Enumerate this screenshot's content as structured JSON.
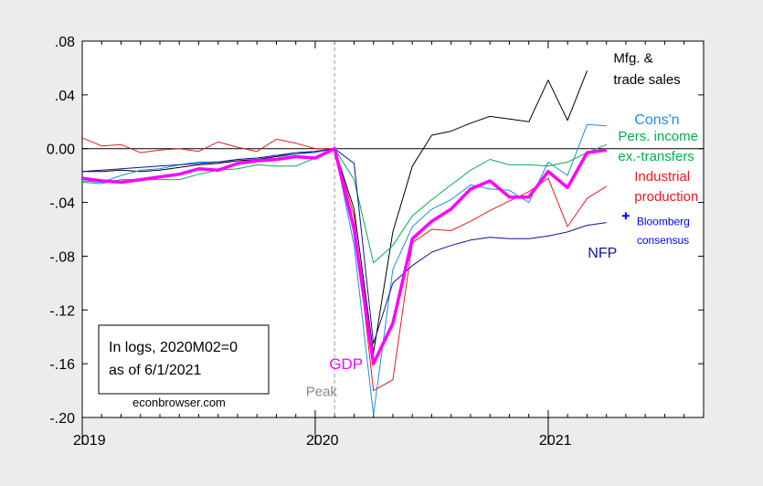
{
  "chart_data": {
    "type": "line",
    "title": "",
    "xlabel": "",
    "ylabel": "",
    "xlim": [
      2019.0,
      2021.667
    ],
    "ylim": [
      -0.2,
      0.08
    ],
    "x_ticks": [
      {
        "value": 2019,
        "label": "2019"
      },
      {
        "value": 2020,
        "label": "2020"
      },
      {
        "value": 2021,
        "label": "2021"
      }
    ],
    "y_ticks": [
      {
        "value": 0.08,
        "label": ".08"
      },
      {
        "value": 0.04,
        "label": ".04"
      },
      {
        "value": 0.0,
        "label": "0.00"
      },
      {
        "value": -0.04,
        "label": "-.04"
      },
      {
        "value": -0.08,
        "label": "-.08"
      },
      {
        "value": -0.12,
        "label": "-.12"
      },
      {
        "value": -0.16,
        "label": "-.16"
      },
      {
        "value": -0.2,
        "label": "-.20"
      }
    ],
    "grid": false,
    "zero_line": 0.0,
    "reference_line": {
      "x": 2020.083,
      "label": "Peak",
      "color": "#999999"
    },
    "series": [
      {
        "name": "Mfg. & trade sales",
        "color": "#000000",
        "width": 1,
        "x": [
          2019.0,
          2019.083,
          2019.167,
          2019.25,
          2019.333,
          2019.417,
          2019.5,
          2019.583,
          2019.667,
          2019.75,
          2019.833,
          2019.917,
          2020.0,
          2020.083,
          2020.167,
          2020.25,
          2020.333,
          2020.417,
          2020.5,
          2020.583,
          2020.667,
          2020.75,
          2020.833,
          2020.917,
          2021.0,
          2021.083,
          2021.167
        ],
        "values": [
          -0.017,
          -0.017,
          -0.016,
          -0.017,
          -0.016,
          -0.014,
          -0.012,
          -0.011,
          -0.009,
          -0.008,
          -0.006,
          -0.004,
          -0.002,
          0.0,
          -0.045,
          -0.152,
          -0.062,
          -0.013,
          0.01,
          0.013,
          0.019,
          0.024,
          0.022,
          0.02,
          0.051,
          0.021,
          0.058
        ]
      },
      {
        "name": "Cons'n",
        "color": "#1a8fe0",
        "width": 1,
        "x": [
          2019.0,
          2019.083,
          2019.167,
          2019.25,
          2019.333,
          2019.417,
          2019.5,
          2019.583,
          2019.667,
          2019.75,
          2019.833,
          2019.917,
          2020.0,
          2020.083,
          2020.167,
          2020.25,
          2020.333,
          2020.417,
          2020.5,
          2020.583,
          2020.667,
          2020.75,
          2020.833,
          2020.917,
          2021.0,
          2021.083,
          2021.167,
          2021.25
        ],
        "values": [
          -0.024,
          -0.025,
          -0.02,
          -0.016,
          -0.015,
          -0.012,
          -0.01,
          -0.01,
          -0.008,
          -0.007,
          -0.005,
          -0.004,
          -0.003,
          0.0,
          -0.072,
          -0.198,
          -0.09,
          -0.058,
          -0.045,
          -0.038,
          -0.027,
          -0.03,
          -0.031,
          -0.04,
          -0.01,
          -0.02,
          0.018,
          0.017
        ]
      },
      {
        "name": "Pers. income ex.-transfers",
        "color": "#00b050",
        "width": 1,
        "x": [
          2019.0,
          2019.083,
          2019.167,
          2019.25,
          2019.333,
          2019.417,
          2019.5,
          2019.583,
          2019.667,
          2019.75,
          2019.833,
          2019.917,
          2020.0,
          2020.083,
          2020.167,
          2020.25,
          2020.333,
          2020.417,
          2020.5,
          2020.583,
          2020.667,
          2020.75,
          2020.833,
          2020.917,
          2021.0,
          2021.083,
          2021.167,
          2021.25
        ],
        "values": [
          -0.025,
          -0.026,
          -0.023,
          -0.023,
          -0.023,
          -0.023,
          -0.019,
          -0.016,
          -0.015,
          -0.012,
          -0.013,
          -0.013,
          -0.007,
          0.0,
          -0.023,
          -0.085,
          -0.072,
          -0.05,
          -0.038,
          -0.027,
          -0.016,
          -0.008,
          -0.012,
          -0.012,
          -0.013,
          -0.01,
          -0.003,
          0.003
        ]
      },
      {
        "name": "Industrial production",
        "color": "#e8191e",
        "width": 1,
        "x": [
          2019.0,
          2019.083,
          2019.167,
          2019.25,
          2019.333,
          2019.417,
          2019.5,
          2019.583,
          2019.667,
          2019.75,
          2019.833,
          2019.917,
          2020.0,
          2020.083,
          2020.167,
          2020.25,
          2020.333,
          2020.417,
          2020.5,
          2020.583,
          2020.667,
          2020.75,
          2020.833,
          2020.917,
          2021.0,
          2021.083,
          2021.167,
          2021.25
        ],
        "values": [
          0.008,
          0.002,
          0.003,
          -0.003,
          -0.001,
          0.0,
          -0.002,
          0.005,
          0.001,
          -0.002,
          0.007,
          0.004,
          0.0,
          0.0,
          -0.05,
          -0.18,
          -0.172,
          -0.07,
          -0.06,
          -0.061,
          -0.054,
          -0.046,
          -0.039,
          -0.032,
          -0.022,
          -0.058,
          -0.037,
          -0.028
        ]
      },
      {
        "name": "NFP",
        "color": "#0a1596",
        "width": 1,
        "x": [
          2019.0,
          2019.083,
          2019.167,
          2019.25,
          2019.333,
          2019.417,
          2019.5,
          2019.583,
          2019.667,
          2019.75,
          2019.833,
          2019.917,
          2020.0,
          2020.083,
          2020.167,
          2020.25,
          2020.333,
          2020.417,
          2020.5,
          2020.583,
          2020.667,
          2020.75,
          2020.833,
          2020.917,
          2021.0,
          2021.083,
          2021.167,
          2021.25
        ],
        "values": [
          -0.017,
          -0.016,
          -0.015,
          -0.014,
          -0.013,
          -0.012,
          -0.011,
          -0.01,
          -0.008,
          -0.007,
          -0.005,
          -0.003,
          -0.002,
          0.0,
          -0.011,
          -0.145,
          -0.1,
          -0.087,
          -0.077,
          -0.072,
          -0.068,
          -0.066,
          -0.067,
          -0.067,
          -0.065,
          -0.062,
          -0.057,
          -0.055
        ]
      },
      {
        "name": "GDP",
        "color": "#ff00ff",
        "width": 3.5,
        "x": [
          2019.0,
          2019.083,
          2019.167,
          2019.25,
          2019.333,
          2019.417,
          2019.5,
          2019.583,
          2019.667,
          2019.75,
          2019.833,
          2019.917,
          2020.0,
          2020.083,
          2020.167,
          2020.25,
          2020.333,
          2020.417,
          2020.5,
          2020.583,
          2020.667,
          2020.75,
          2020.833,
          2020.917,
          2021.0,
          2021.083,
          2021.167,
          2021.25
        ],
        "values": [
          -0.022,
          -0.024,
          -0.025,
          -0.023,
          -0.021,
          -0.019,
          -0.015,
          -0.016,
          -0.011,
          -0.009,
          -0.008,
          -0.006,
          -0.007,
          0.0,
          -0.06,
          -0.16,
          -0.13,
          -0.067,
          -0.054,
          -0.045,
          -0.03,
          -0.024,
          -0.036,
          -0.036,
          -0.017,
          -0.029,
          -0.003,
          -0.001
        ]
      },
      {
        "name": "Bloomberg consensus",
        "color": "#0000ff",
        "type": "marker",
        "marker": "+",
        "x": [
          2021.333
        ],
        "values": [
          -0.05
        ]
      }
    ],
    "series_labels": [
      {
        "text": "Mfg. &",
        "color": "#000000",
        "x": 2021.28,
        "y": 0.064,
        "size": 15
      },
      {
        "text": "trade sales",
        "color": "#000000",
        "x": 2021.28,
        "y": 0.048,
        "size": 15
      },
      {
        "text": "Cons'n",
        "color": "#1a8fe0",
        "x": 2021.37,
        "y": 0.018,
        "size": 16
      },
      {
        "text": "Pers. income",
        "color": "#00b050",
        "x": 2021.3,
        "y": 0.006,
        "size": 15
      },
      {
        "text": "ex.-transfers",
        "color": "#00b050",
        "x": 2021.3,
        "y": -0.009,
        "size": 15
      },
      {
        "text": "Industrial",
        "color": "#e8191e",
        "x": 2021.37,
        "y": -0.024,
        "size": 15
      },
      {
        "text": "production",
        "color": "#e8191e",
        "x": 2021.37,
        "y": -0.039,
        "size": 15
      },
      {
        "text": "Bloomberg",
        "color": "#0000ff",
        "x": 2021.38,
        "y": -0.057,
        "size": 12
      },
      {
        "text": "consensus",
        "color": "#0000ff",
        "x": 2021.38,
        "y": -0.071,
        "size": 12
      },
      {
        "text": "NFP",
        "color": "#0a1596",
        "x": 2021.17,
        "y": -0.081,
        "size": 16
      },
      {
        "text": "GDP",
        "color": "#ff00ff",
        "x": 2020.06,
        "y": -0.164,
        "size": 17
      },
      {
        "text": "Peak",
        "color": "#888888",
        "x": 2019.96,
        "y": -0.184,
        "size": 15
      }
    ],
    "annotation_box": {
      "lines": [
        "In logs, 2020M02=0",
        "as of 6/1/2021"
      ],
      "credit": "econbrowser.com"
    }
  }
}
